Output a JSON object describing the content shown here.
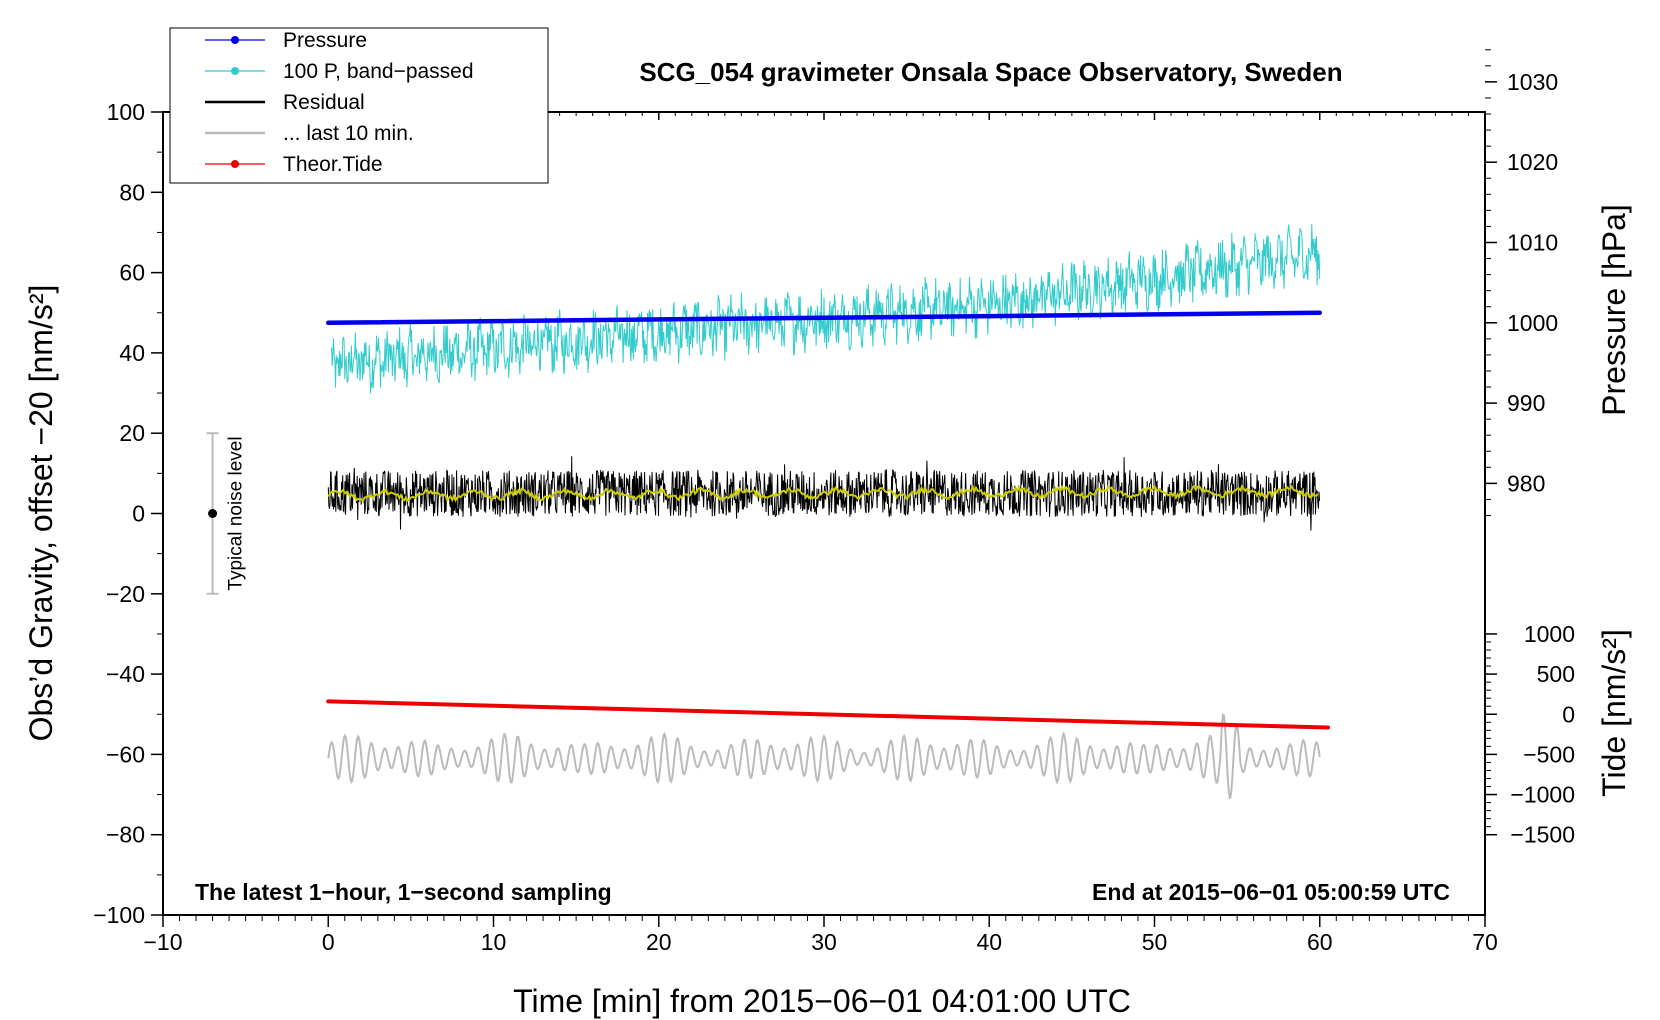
{
  "chart_data": {
    "type": "line",
    "title": "SCG_054 gravimeter Onsala Space Observatory, Sweden",
    "xlabel": "Time [min] from 2015−06−01 04:01:00 UTC",
    "ylabel": "Obs’d Gravity, offset −20 [nm/s²]",
    "y2label": "Pressure [hPa]",
    "y3label": "Tide [nm/s²]",
    "xlim": [
      -10,
      70
    ],
    "ylim": [
      -100,
      100
    ],
    "xticks": [
      -10,
      0,
      10,
      20,
      30,
      40,
      50,
      60,
      70
    ],
    "xtick_labels": [
      "−10",
      "0",
      "10",
      "20",
      "30",
      "40",
      "50",
      "60",
      "70"
    ],
    "yticks": [
      100,
      80,
      60,
      40,
      20,
      0,
      -20,
      -40,
      -60,
      -80,
      -100
    ],
    "ytick_labels": [
      "100",
      "80",
      "60",
      "40",
      "20",
      "0",
      "−20",
      "−40",
      "−60",
      "−80",
      "−100"
    ],
    "pressure_axis": {
      "ticks": [
        1030,
        1020,
        1010,
        1000,
        990,
        980
      ],
      "tick_labels": [
        "1030",
        "1020",
        "1010",
        "1000",
        "990",
        "980"
      ],
      "scale": "1 hPa = 2 nm/s² on left axis; 1000 hPa at 47.5"
    },
    "tide_axis": {
      "ticks": [
        1000,
        500,
        0,
        -500,
        -1000,
        -1500
      ],
      "tick_labels": [
        "1000",
        "500",
        "0",
        "−500",
        "−1000",
        "−1500"
      ],
      "scale": "100 nm/s² = 2 nm/s² on left axis; 0 at −50"
    },
    "series": [
      {
        "name": "Pressure",
        "color": "#0000ee",
        "x": [
          0,
          60
        ],
        "y": [
          47.5,
          50.0
        ],
        "style": "thick line"
      },
      {
        "name": "100 P, band−passed",
        "color": "#33cccc",
        "trend_x": [
          0,
          20,
          40,
          60
        ],
        "trend_y": [
          37,
          45,
          52,
          65
        ],
        "amplitude": 10,
        "style": "noisy line"
      },
      {
        "name": "Residual",
        "color": "#000000",
        "x": [
          0,
          60
        ],
        "y": [
          5,
          5
        ],
        "amplitude": 9,
        "style": "noisy line"
      },
      {
        "name": "Residual smoothed",
        "color": "#cccc00",
        "x": [
          0,
          60
        ],
        "y": [
          4.5,
          5.5
        ],
        "style": "line"
      },
      {
        "name": "... last 10 min.",
        "color": "#bbbbbb",
        "x": [
          0,
          60
        ],
        "y": [
          -61,
          -61
        ],
        "amplitude": 10,
        "style": "oscillating line"
      },
      {
        "name": "Theor.Tide",
        "color": "#ee0000",
        "x": [
          0,
          60.5
        ],
        "y": [
          -46.8,
          -53.3
        ],
        "style": "thick line"
      }
    ],
    "legend": {
      "placement": "top-left",
      "entries": [
        {
          "label": "Pressure",
          "color": "#0000ee",
          "marker": true
        },
        {
          "label": "100 P, band−passed",
          "color": "#33cccc",
          "marker": true
        },
        {
          "label": "Residual",
          "color": "#000000",
          "marker": false
        },
        {
          "label": "... last 10 min.",
          "color": "#bbbbbb",
          "marker": false
        },
        {
          "label": "Theor.Tide",
          "color": "#ee0000",
          "marker": true
        }
      ]
    },
    "noise_bar": {
      "label": "Typical noise level",
      "x": -7,
      "center": 0,
      "low": -20,
      "high": 20
    },
    "annotations": {
      "left": "The latest 1−hour, 1−second sampling",
      "right": "End at 2015−06−01 05:00:59 UTC"
    }
  }
}
